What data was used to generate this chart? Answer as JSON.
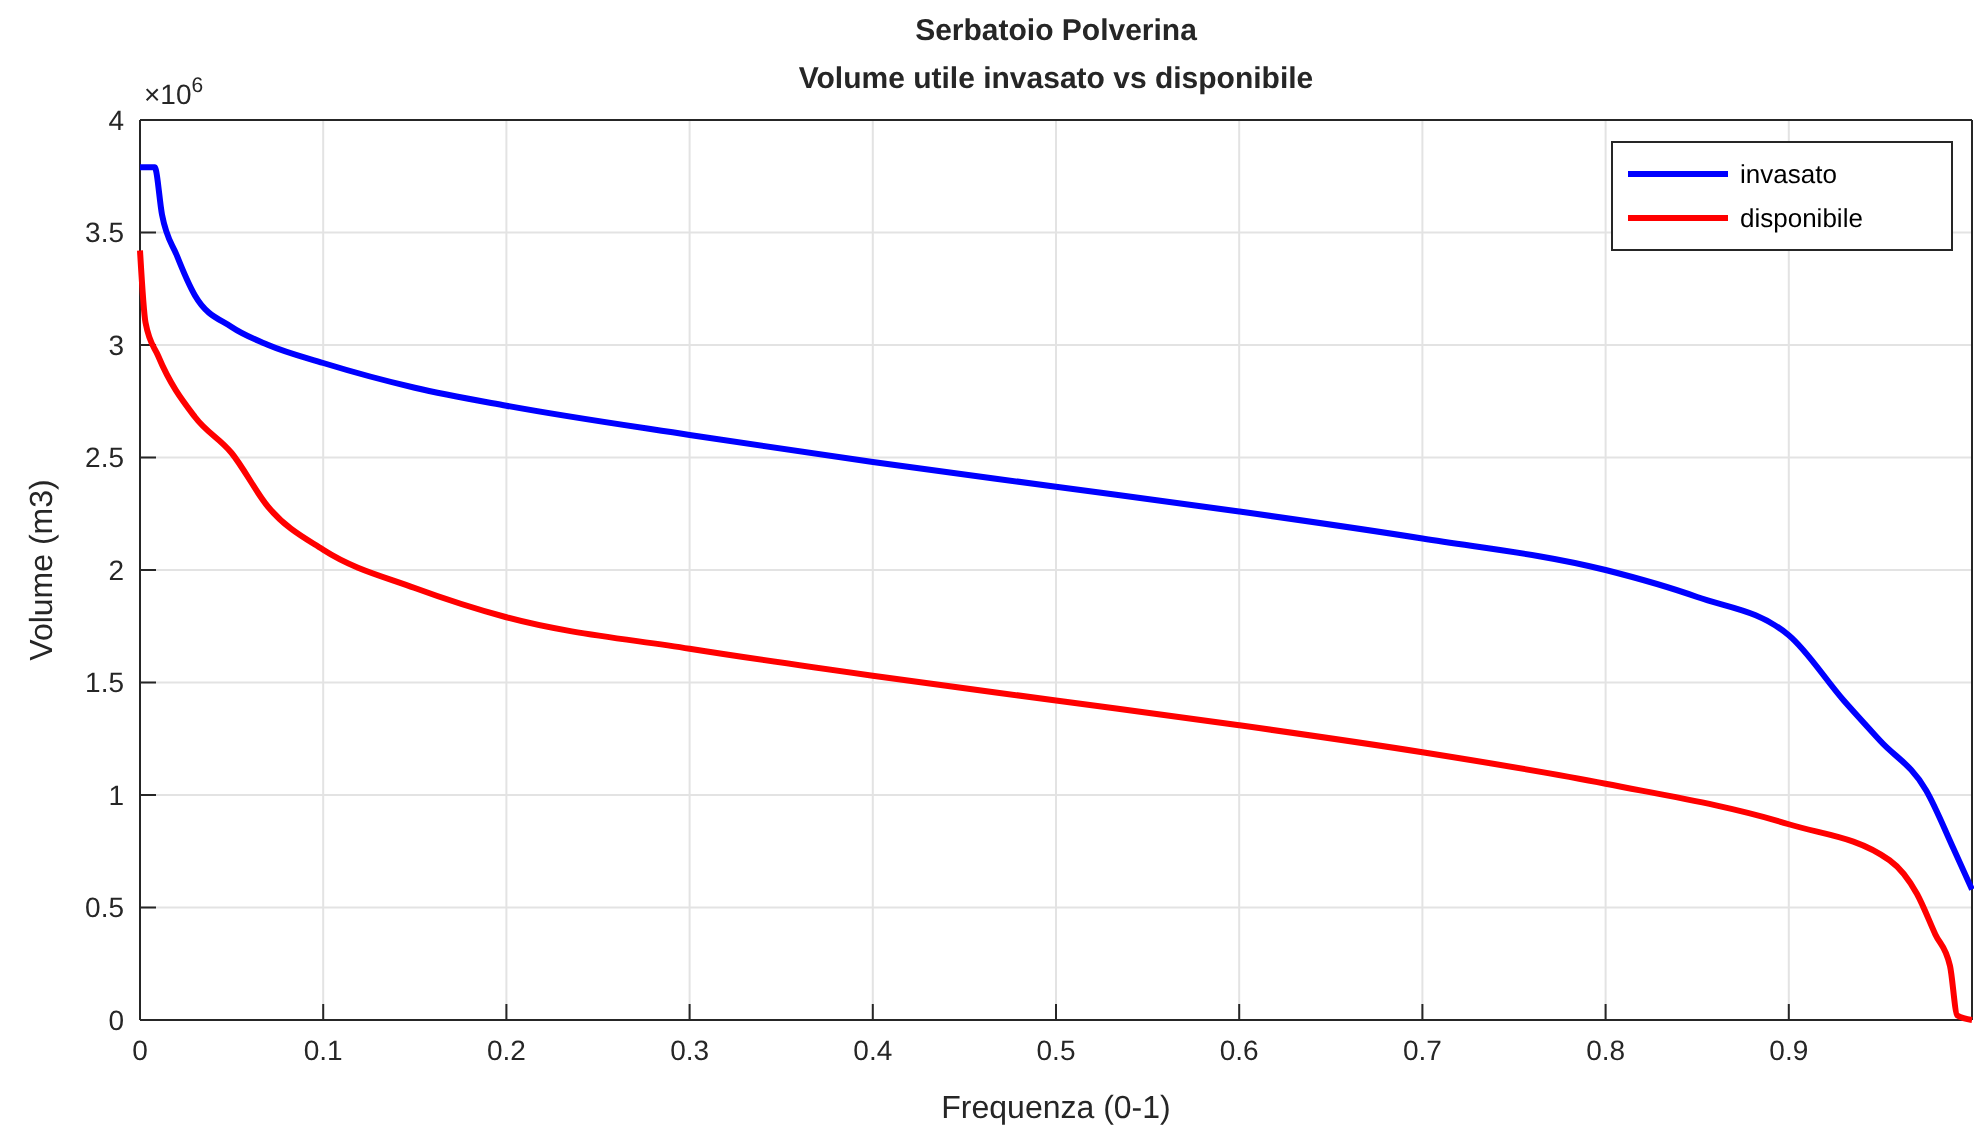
{
  "chart_data": {
    "type": "line",
    "title": "Serbatoio Polverina",
    "subtitle": "Volume utile invasato vs disponibile",
    "xlabel": "Frequenza (0-1)",
    "ylabel": "Volume (m3)",
    "annotations": [
      "×10$^{6}$"
    ],
    "xlim": [
      0,
      1
    ],
    "xticks": [
      0,
      0.1,
      0.2,
      0.3,
      0.4,
      0.5,
      0.6,
      0.7,
      0.8,
      0.9
    ],
    "ylim": [
      0,
      4
    ],
    "yticks": [
      0,
      0.5,
      1,
      1.5,
      2,
      2.5,
      3,
      3.5,
      4
    ],
    "grid": true,
    "legend": "top right",
    "line_style": "solid",
    "marker": "none",
    "series": [
      {
        "name": "invasato",
        "color": "#0000ff",
        "x": [
          0,
          0.008,
          0.012,
          0.02,
          0.03,
          0.05,
          0.07,
          0.1,
          0.15,
          0.2,
          0.3,
          0.4,
          0.5,
          0.6,
          0.7,
          0.8,
          0.85,
          0.9,
          0.93,
          0.95,
          0.975,
          0.99,
          1
        ],
        "values": [
          3.79,
          3.79,
          3.58,
          3.4,
          3.22,
          3.08,
          3.0,
          2.92,
          2.81,
          2.73,
          2.6,
          2.48,
          2.37,
          2.26,
          2.14,
          2.0,
          1.88,
          1.71,
          1.42,
          1.24,
          1.02,
          0.76,
          0.58
        ]
      },
      {
        "name": "disponibile",
        "color": "#ff0000",
        "x": [
          0,
          0.003,
          0.01,
          0.03,
          0.05,
          0.07,
          0.1,
          0.15,
          0.2,
          0.3,
          0.4,
          0.5,
          0.6,
          0.7,
          0.8,
          0.9,
          0.955,
          0.97,
          0.98,
          0.988,
          0.992,
          1
        ],
        "values": [
          3.42,
          3.1,
          2.95,
          2.68,
          2.52,
          2.28,
          2.09,
          1.92,
          1.79,
          1.65,
          1.53,
          1.42,
          1.31,
          1.19,
          1.05,
          0.87,
          0.71,
          0.56,
          0.38,
          0.24,
          0.02,
          0
        ]
      }
    ]
  }
}
